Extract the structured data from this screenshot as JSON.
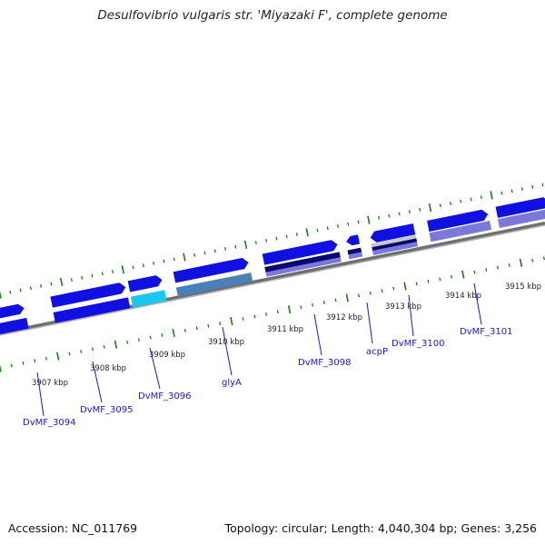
{
  "title": "Desulfovibrio vulgaris str. 'Miyazaki F', complete genome",
  "footer": {
    "accession": "Accession: NC_011769",
    "summary": "Topology: circular; Length: 4,040,304 bp; Genes: 3,256"
  },
  "colors": {
    "gene_blue": "#1010e0",
    "gene_cyan": "#18c8f0",
    "gene_steel": "#4a80b8",
    "gene_navy": "#080870",
    "gene_lavender": "#7a78d8",
    "gene_gray": "#c8c8c8",
    "backbone": "#8a8a8a",
    "tick_green": "#1a7a1a",
    "label_blue": "#1a1acc"
  },
  "ticks": [
    "3907 kbp",
    "3908 kbp",
    "3909 kbp",
    "3910 kbp",
    "3911 kbp",
    "3912 kbp",
    "3913 kbp",
    "3914 kbp",
    "3915 kbp"
  ],
  "genes": [
    "DvMF_3094",
    "DvMF_3095",
    "DvMF_3096",
    "glyA",
    "DvMF_3098",
    "acpP",
    "DvMF_3100",
    "DvMF_3101"
  ]
}
